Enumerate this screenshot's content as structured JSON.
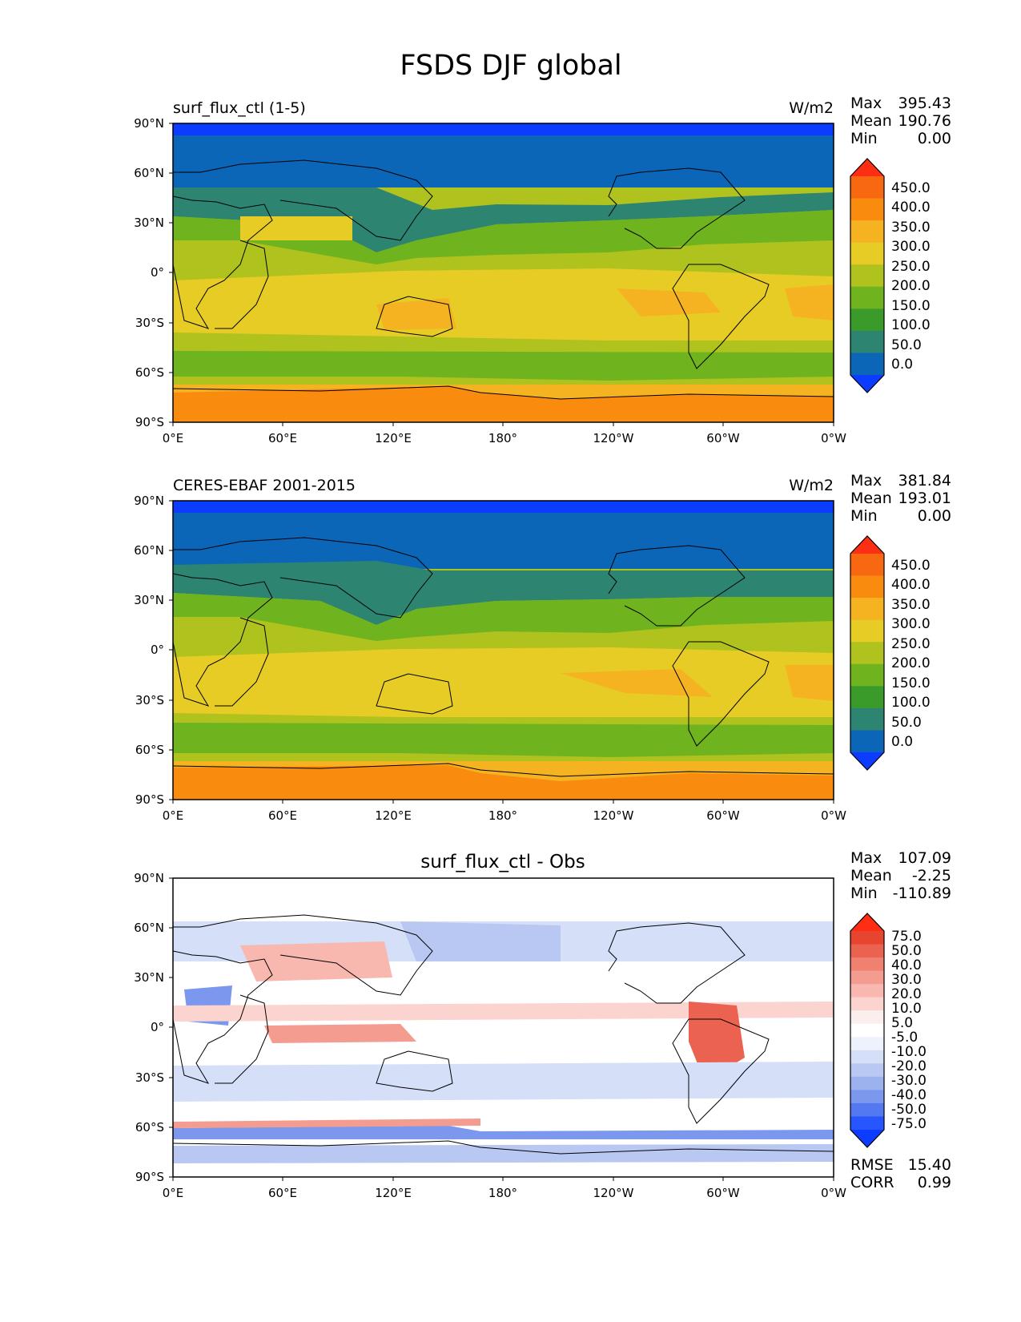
{
  "figure_title": "FSDS DJF global",
  "colors": {
    "seq": [
      "#0c3cff",
      "#0b66b7",
      "#2d8471",
      "#3a9b2b",
      "#6fb31f",
      "#afc21e",
      "#e8cc26",
      "#f5b322",
      "#f98b0e",
      "#f86811",
      "#fd2e13"
    ],
    "div": [
      "#0c3cff",
      "#2755ff",
      "#5478f0",
      "#7b97ee",
      "#9cb2ef",
      "#b9c8f2",
      "#d6dff8",
      "#eef2fc",
      "#ffffff",
      "#fdeeee",
      "#fbd4d0",
      "#f8b8b0",
      "#f59c90",
      "#f08070",
      "#eb6250",
      "#e84530",
      "#fd2e13"
    ]
  },
  "panels": [
    {
      "id": "test",
      "title_left": "surf_flux_ctl (1-5)",
      "title_right": "W/m2",
      "title_center": "",
      "stats": [
        {
          "label": "Max",
          "value": "395.43"
        },
        {
          "label": "Mean",
          "value": "190.76"
        },
        {
          "label": "Min",
          "value": "0.00"
        }
      ],
      "colorbar_labels": [
        "450.0",
        "400.0",
        "350.0",
        "300.0",
        "250.0",
        "200.0",
        "150.0",
        "100.0",
        "50.0",
        "0.0"
      ],
      "metrics": []
    },
    {
      "id": "ref",
      "title_left": "CERES-EBAF 2001-2015",
      "title_right": "W/m2",
      "title_center": "",
      "stats": [
        {
          "label": "Max",
          "value": "381.84"
        },
        {
          "label": "Mean",
          "value": "193.01"
        },
        {
          "label": "Min",
          "value": "0.00"
        }
      ],
      "colorbar_labels": [
        "450.0",
        "400.0",
        "350.0",
        "300.0",
        "250.0",
        "200.0",
        "150.0",
        "100.0",
        "50.0",
        "0.0"
      ],
      "metrics": []
    },
    {
      "id": "diff",
      "title_left": "",
      "title_right": "",
      "title_center": "surf_flux_ctl - Obs",
      "stats": [
        {
          "label": "Max",
          "value": "107.09"
        },
        {
          "label": "Mean",
          "value": "-2.25"
        },
        {
          "label": "Min",
          "value": "-110.89"
        }
      ],
      "colorbar_labels": [
        "75.0",
        "50.0",
        "40.0",
        "30.0",
        "20.0",
        "10.0",
        "5.0",
        "-5.0",
        "-10.0",
        "-20.0",
        "-30.0",
        "-40.0",
        "-50.0",
        "-75.0"
      ],
      "metrics": [
        {
          "label": "RMSE",
          "value": "15.40"
        },
        {
          "label": "CORR",
          "value": "0.99"
        }
      ]
    }
  ],
  "axes": {
    "lat_ticks": [
      "90°N",
      "60°N",
      "30°N",
      "0°",
      "30°S",
      "60°S",
      "90°S"
    ],
    "lon_ticks": [
      "0°E",
      "60°E",
      "120°E",
      "180°",
      "120°W",
      "60°W",
      "0°W"
    ]
  }
}
